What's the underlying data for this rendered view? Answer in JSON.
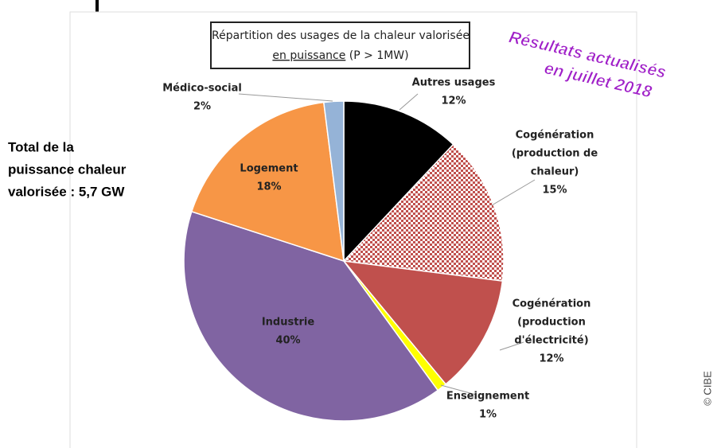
{
  "chart_data": {
    "type": "pie",
    "title": [
      "Répartition des usages de la chaleur valorisée",
      "en puissance",
      "(P > 1MW)"
    ],
    "categories": [
      [
        "Autres usages"
      ],
      [
        "Cogénération",
        "(production de",
        "chaleur)"
      ],
      [
        "Cogénération",
        "(production",
        "d'électricité)"
      ],
      [
        "Enseignement"
      ],
      [
        "Industrie"
      ],
      [
        "Logement"
      ],
      [
        "Médico-social"
      ]
    ],
    "values": [
      12,
      15,
      12,
      1,
      40,
      18,
      2
    ],
    "value_labels": [
      "12%",
      "15%",
      "12%",
      "1%",
      "40%",
      "18%",
      "2%"
    ],
    "colors": [
      "#000000",
      "pattern-checker",
      "#c0504d",
      "#ffff00",
      "#8064a2",
      "#f79646",
      "#95b3d7"
    ],
    "overlay": [
      "Résultats actualisés",
      "en juillet 2018"
    ],
    "side_note": [
      "Total de la",
      "puissance chaleur",
      "valorisée : 5,7 GW"
    ],
    "credit": "© CIBE"
  }
}
